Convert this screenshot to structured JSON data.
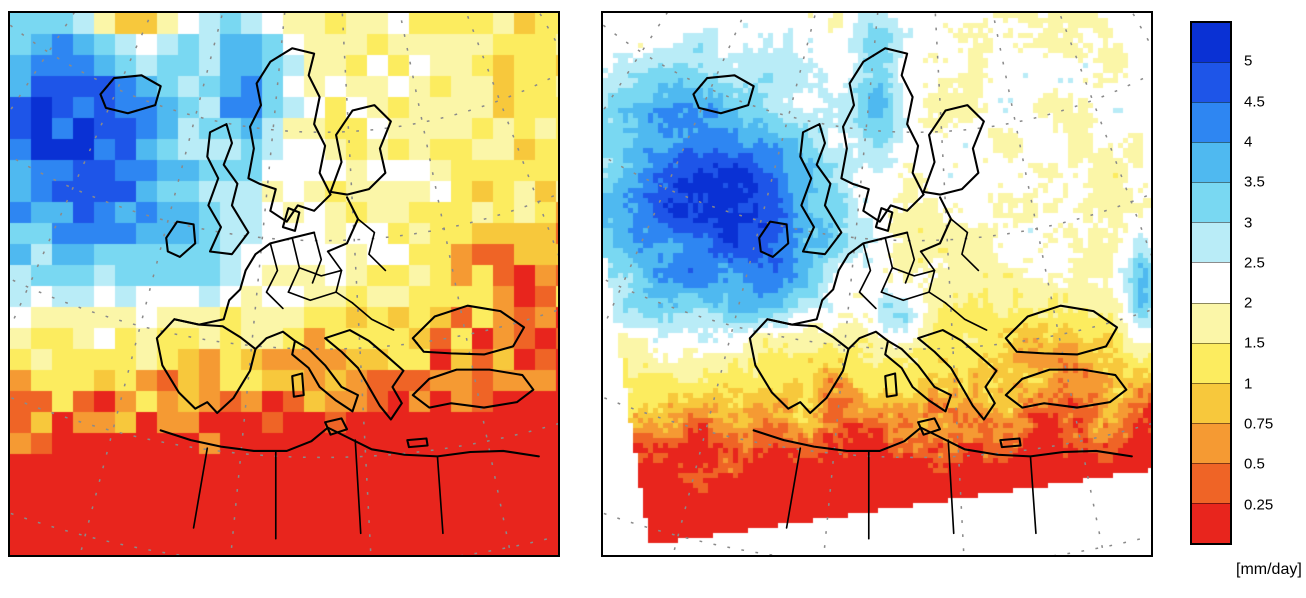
{
  "chart_data": {
    "type": "heatmap",
    "subtype": "geographic-precipitation-maps",
    "title": "",
    "legend_position": "right",
    "panels": [
      {
        "position": "left",
        "content": "coarse-resolution gridded mean precipitation over Europe / North Africa",
        "pattern": {
          "north_atlantic": "3 to 5 mm/day (blues)",
          "norway_coast": "4 to 5 mm/day (dark blue streak)",
          "central_europe": "about 2 mm/day (white band)",
          "eastern_europe_top_right": "1 to 1.5 mm/day (yellow)",
          "mediterranean": "0.75 to 1.5 mm/day (yellow-orange)",
          "north_africa": "below 0.25 mm/day (red)"
        }
      },
      {
        "position": "right",
        "content": "high-resolution mean precipitation on a rotated model domain",
        "pattern": {
          "northeast_atlantic": "4 to 5+ mm/day (dark blue)",
          "british_isles": "3.5 to 5 mm/day (blue)",
          "eastern_europe": "2 to 2.5 mm/day (white with cyan specks)",
          "mediterranean": "1 to 1.5 mm/day (yellow)",
          "north_africa_band": "0.25 to 0.75 mm/day (orange)",
          "sahara": "below 0.25 mm/day (red)",
          "outside_domain": "white (no data)"
        }
      }
    ],
    "colorbar": {
      "orientation": "vertical",
      "ticks": [
        5,
        4.5,
        4,
        3.5,
        3,
        2.5,
        2,
        1.5,
        1,
        0.75,
        0.5,
        0.25
      ],
      "units_label": "[mm/day]",
      "colors_top_to_bottom": [
        "#0a31d4",
        "#1e55e8",
        "#2e86f2",
        "#4fb9f0",
        "#79d8f2",
        "#b9ecf7",
        "#ffffff",
        "#fbf6a8",
        "#fcec5f",
        "#f7c83c",
        "#f59a33",
        "#ef6426",
        "#e8251d"
      ]
    }
  }
}
